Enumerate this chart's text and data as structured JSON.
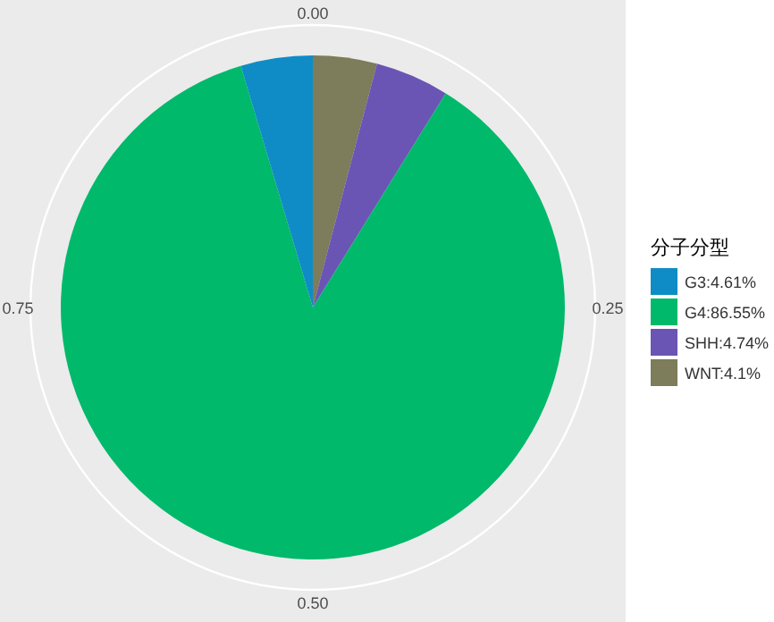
{
  "chart_data": {
    "type": "pie",
    "legend_title": "分子分型",
    "categories": [
      "G3:4.61%",
      "G4:86.55%",
      "SHH:4.74%",
      "WNT:4.1%"
    ],
    "values": [
      4.61,
      86.55,
      4.74,
      4.1
    ],
    "colors": [
      "#0f8cc6",
      "#00b96b",
      "#6a55b5",
      "#7d7c5b"
    ],
    "annotations": [
      "0.00",
      "0.25",
      "0.50",
      "0.75"
    ],
    "grid": true,
    "legend": "right"
  }
}
